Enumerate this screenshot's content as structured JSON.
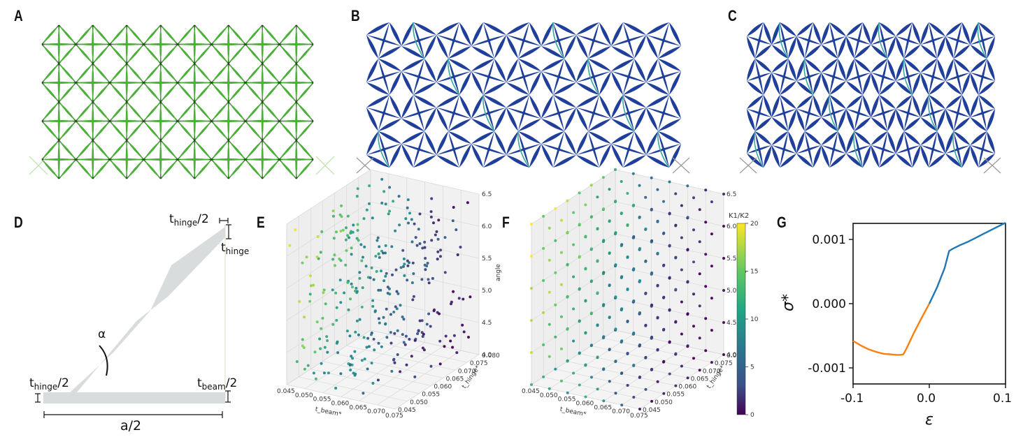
{
  "panels": {
    "A": "A",
    "B": "B",
    "C": "C",
    "D": "D",
    "E": "E",
    "F": "F",
    "G": "G"
  },
  "colors": {
    "green_beam": "#4caf3a",
    "blue_beam": "#1f3f9a",
    "hinge_cyan": "#3aa7a0",
    "hinge_shape": "#d9dcdd",
    "series_orange": "#ff7f0e",
    "series_blue": "#1f77b4"
  },
  "diagram_D": {
    "t_hinge_top": "t",
    "t_hinge_top_sub": "hinge",
    "t_hinge_top_suffix": "/2",
    "t_hinge_right": "t",
    "t_hinge_right_sub": "hinge",
    "alpha": "α",
    "t_hinge_left": "t",
    "t_hinge_left_sub": "hinge",
    "t_hinge_left_suffix": "/2",
    "t_beam": "t",
    "t_beam_sub": "beam",
    "t_beam_suffix": "/2",
    "a_half": "a/2"
  },
  "scatter_E": {
    "x_label": "t_beam*",
    "y_label": "t_hinge*",
    "z_label": "angle",
    "x_ticks": [
      "0.045",
      "0.050",
      "0.055",
      "0.060",
      "0.065",
      "0.070",
      "0.075"
    ],
    "y_ticks": [
      "0.045",
      "0.050",
      "0.055",
      "0.060",
      "0.065",
      "0.070",
      "0.075",
      "0.080"
    ],
    "z_ticks": [
      "4.0",
      "4.5",
      "5.0",
      "5.5",
      "6.0",
      "6.5"
    ]
  },
  "scatter_F": {
    "x_label": "t_beam*",
    "y_label": "t_hinge*",
    "z_label": "angle",
    "x_ticks": [
      "0.045",
      "0.050",
      "0.055",
      "0.060",
      "0.065",
      "0.070",
      "0.075"
    ],
    "y_ticks": [
      "0.045",
      "0.050",
      "0.055",
      "0.060",
      "0.065",
      "0.070",
      "0.075",
      "0.080"
    ],
    "z_ticks": [
      "4.0",
      "4.5",
      "5.0",
      "5.5",
      "6.0",
      "6.5"
    ],
    "colorbar_label": "K1/K2",
    "colorbar_ticks": [
      "0",
      "5",
      "10",
      "15",
      "20"
    ]
  },
  "chart_data": {
    "type": "line",
    "xlabel": "ε",
    "ylabel": "σ*",
    "xlim": [
      -0.1,
      0.1
    ],
    "ylim": [
      -0.00125,
      0.00125
    ],
    "x_ticks": [
      "-0.1",
      "0.0",
      "0.1"
    ],
    "y_ticks": [
      "0.001",
      "0.000",
      "-0.001"
    ],
    "series": [
      {
        "color": "#ff7f0e",
        "x": [
          -0.1,
          -0.09,
          -0.08,
          -0.07,
          -0.06,
          -0.05,
          -0.04,
          -0.034,
          -0.03,
          -0.02,
          -0.01,
          0.0
        ],
        "y": [
          -0.00058,
          -0.00065,
          -0.00071,
          -0.00075,
          -0.00078,
          -0.00079,
          -0.0008,
          -0.00079,
          -0.0007,
          -0.00045,
          -0.00022,
          0.0
        ]
      },
      {
        "color": "#1f77b4",
        "x": [
          0.0,
          0.01,
          0.02,
          0.026,
          0.03,
          0.04,
          0.05,
          0.06,
          0.07,
          0.08,
          0.09,
          0.1
        ],
        "y": [
          0.0,
          0.00025,
          0.00055,
          0.00082,
          0.00085,
          0.00091,
          0.00096,
          0.00102,
          0.00108,
          0.00114,
          0.0012,
          0.00126
        ]
      }
    ]
  }
}
